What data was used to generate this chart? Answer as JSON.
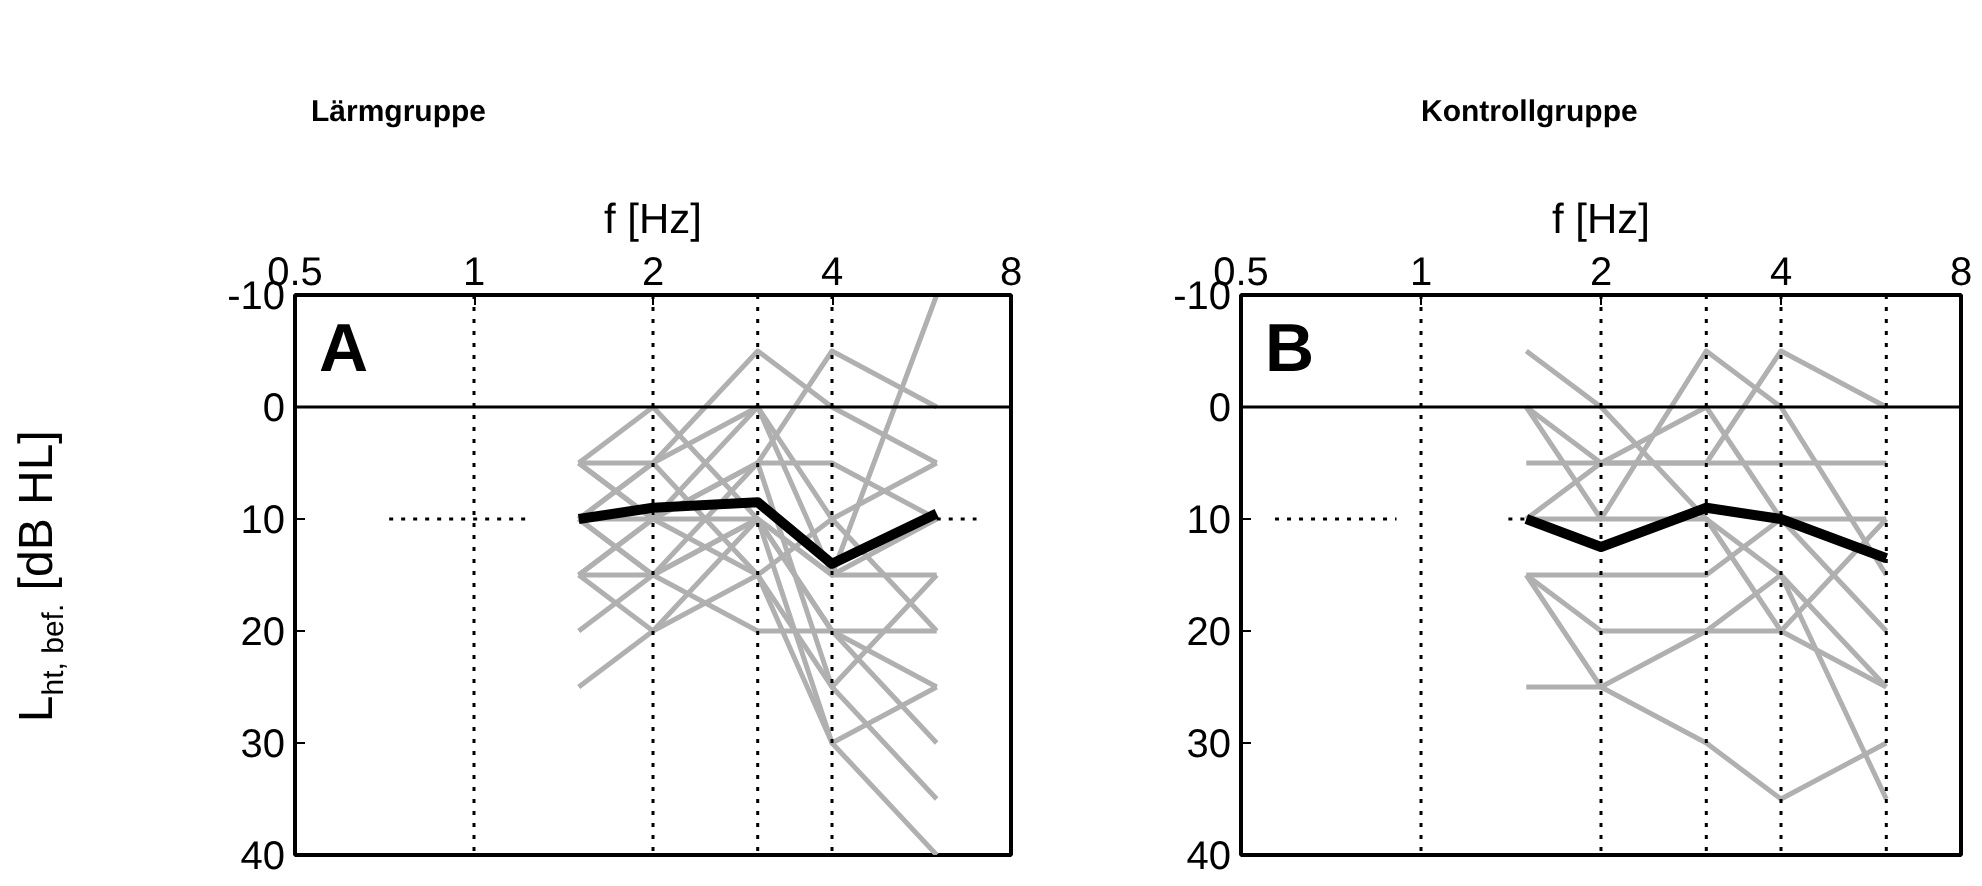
{
  "chart_data": [
    {
      "type": "line",
      "title": "Lärmgruppe",
      "xlabel": "f [Hz]",
      "ylabel": "L$_{ht, bef.}$ [dB HL]",
      "log": "x",
      "grid": false,
      "xlim": [
        0.5,
        8
      ],
      "xticks": [
        0.5,
        1,
        2,
        4,
        8
      ],
      "ylim": [
        40,
        -10
      ],
      "yticks": [
        -10,
        0,
        10,
        20,
        30,
        40
      ],
      "annotations": [
        "A"
      ],
      "ref_lines": [
        {
          "axis": "y",
          "value": 0,
          "color": "#000000",
          "line_style": "solid"
        },
        {
          "axis": "x",
          "value": 1,
          "color": "#000000",
          "line_style": "dotted"
        },
        {
          "axis": "x",
          "value": 2,
          "color": "#000000",
          "line_style": "dotted"
        },
        {
          "axis": "x",
          "value": 3,
          "color": "#000000",
          "line_style": "dotted"
        },
        {
          "axis": "x",
          "value": 4,
          "color": "#000000",
          "line_style": "dotted"
        }
      ],
      "series": [
        {
          "color": "#b0b0b0",
          "x": [
            1.5,
            2,
            3,
            4,
            6
          ],
          "values": [
            5,
            5,
            -5,
            0,
            5
          ]
        },
        {
          "color": "#b0b0b0",
          "x": [
            1.5,
            2,
            3,
            4,
            6
          ],
          "values": [
            10,
            5,
            0,
            15,
            -10
          ]
        },
        {
          "color": "#b0b0b0",
          "x": [
            1.5,
            2,
            3,
            4,
            6
          ],
          "values": [
            15,
            15,
            10,
            20,
            25
          ]
        },
        {
          "color": "#b0b0b0",
          "x": [
            1.5,
            2,
            3,
            4,
            6
          ],
          "values": [
            25,
            20,
            15,
            30,
            40
          ]
        },
        {
          "color": "#b0b0b0",
          "x": [
            1.5,
            2,
            3,
            4,
            6
          ],
          "values": [
            5,
            10,
            5,
            5,
            10
          ]
        },
        {
          "color": "#b0b0b0",
          "x": [
            1.5,
            2,
            3,
            4,
            6
          ],
          "values": [
            10,
            10,
            15,
            25,
            15
          ]
        },
        {
          "color": "#b0b0b0",
          "x": [
            1.5,
            2,
            3,
            4,
            6
          ],
          "values": [
            15,
            10,
            10,
            15,
            10
          ]
        },
        {
          "color": "#b0b0b0",
          "x": [
            1.5,
            2,
            3,
            4,
            6
          ],
          "values": [
            20,
            15,
            20,
            20,
            20
          ]
        },
        {
          "color": "#b0b0b0",
          "x": [
            1.5,
            2,
            3,
            4,
            6
          ],
          "values": [
            10,
            15,
            5,
            -5,
            0
          ]
        },
        {
          "color": "#b0b0b0",
          "x": [
            1.5,
            2,
            3,
            4,
            6
          ],
          "values": [
            5,
            0,
            10,
            20,
            30
          ]
        },
        {
          "color": "#b0b0b0",
          "x": [
            1.5,
            2,
            3,
            4,
            6
          ],
          "values": [
            15,
            20,
            10,
            30,
            25
          ]
        },
        {
          "color": "#b0b0b0",
          "x": [
            1.5,
            2,
            3,
            4,
            6
          ],
          "values": [
            10,
            5,
            15,
            10,
            5
          ]
        },
        {
          "color": "#b0b0b0",
          "x": [
            1.5,
            2,
            3,
            4,
            6
          ],
          "values": [
            15,
            10,
            5,
            25,
            35
          ]
        },
        {
          "color": "#b0b0b0",
          "x": [
            1.5,
            2,
            3,
            4,
            6
          ],
          "values": [
            10,
            15,
            10,
            15,
            15
          ]
        },
        {
          "color": "#b0b0b0",
          "x": [
            1.5,
            2,
            3,
            4,
            6
          ],
          "values": [
            5,
            10,
            0,
            10,
            20
          ]
        },
        {
          "color": "#000000",
          "line_style": "dotted",
          "x": [
            0.72,
            1.24
          ],
          "values": [
            10,
            10
          ]
        },
        {
          "color": "#000000",
          "line_style": "dotted",
          "x": [
            6,
            7
          ],
          "values": [
            10,
            10
          ]
        },
        {
          "color": "#000000",
          "x": [
            1.5,
            2,
            3,
            4,
            6
          ],
          "values": [
            10,
            9,
            8.5,
            14,
            9.5
          ]
        }
      ]
    },
    {
      "type": "line",
      "title": "Kontrollgruppe",
      "xlabel": "f [Hz]",
      "log": "x",
      "grid": false,
      "xlim": [
        0.5,
        8
      ],
      "xticks": [
        0.5,
        1,
        2,
        4,
        8
      ],
      "ylim": [
        40,
        -10
      ],
      "yticks": [
        -10,
        0,
        10,
        20,
        30,
        40
      ],
      "annotations": [
        "B"
      ],
      "ref_lines": [
        {
          "axis": "y",
          "value": 0,
          "color": "#000000",
          "line_style": "solid"
        },
        {
          "axis": "x",
          "value": 1,
          "color": "#000000",
          "line_style": "dotted"
        },
        {
          "axis": "x",
          "value": 2,
          "color": "#000000",
          "line_style": "dotted"
        },
        {
          "axis": "x",
          "value": 3,
          "color": "#000000",
          "line_style": "dotted"
        },
        {
          "axis": "x",
          "value": 4,
          "color": "#000000",
          "line_style": "dotted"
        },
        {
          "axis": "x",
          "value": 6,
          "color": "#000000",
          "line_style": "dotted"
        }
      ],
      "series": [
        {
          "color": "#b0b0b0",
          "x": [
            1.5,
            2,
            3,
            4,
            6
          ],
          "values": [
            -5,
            0,
            10,
            20,
            25
          ]
        },
        {
          "color": "#b0b0b0",
          "x": [
            1.5,
            2,
            3,
            4,
            6
          ],
          "values": [
            0,
            10,
            -5,
            0,
            15
          ]
        },
        {
          "color": "#b0b0b0",
          "x": [
            1.5,
            2,
            3,
            4,
            6
          ],
          "values": [
            5,
            5,
            5,
            5,
            5
          ]
        },
        {
          "color": "#b0b0b0",
          "x": [
            1.5,
            2,
            3,
            4,
            6
          ],
          "values": [
            15,
            20,
            20,
            20,
            10
          ]
        },
        {
          "color": "#b0b0b0",
          "x": [
            1.5,
            2,
            3,
            4,
            6
          ],
          "values": [
            25,
            25,
            30,
            35,
            30
          ]
        },
        {
          "color": "#b0b0b0",
          "x": [
            1.5,
            2,
            3,
            4,
            6
          ],
          "values": [
            15,
            15,
            15,
            10,
            20
          ]
        },
        {
          "color": "#b0b0b0",
          "x": [
            1.5,
            2,
            3,
            4,
            6
          ],
          "values": [
            10,
            5,
            5,
            -5,
            0
          ]
        },
        {
          "color": "#b0b0b0",
          "x": [
            1.5,
            2,
            3,
            4,
            6
          ],
          "values": [
            15,
            25,
            20,
            15,
            35
          ]
        },
        {
          "color": "#b0b0b0",
          "x": [
            1.5,
            2,
            3,
            4,
            6
          ],
          "values": [
            0,
            5,
            0,
            10,
            10
          ]
        },
        {
          "color": "#b0b0b0",
          "x": [
            1.5,
            2,
            3,
            4,
            6
          ],
          "values": [
            10,
            10,
            10,
            15,
            25
          ]
        },
        {
          "color": "#000000",
          "line_style": "dotted",
          "x": [
            0.57,
            0.91
          ],
          "values": [
            10,
            10
          ]
        },
        {
          "color": "#000000",
          "line_style": "dotted",
          "x": [
            1.4,
            1.5
          ],
          "values": [
            10,
            10
          ]
        },
        {
          "color": "#000000",
          "x": [
            1.5,
            2,
            3,
            4,
            6
          ],
          "values": [
            10,
            12.5,
            9,
            10,
            13.5
          ]
        }
      ]
    }
  ]
}
